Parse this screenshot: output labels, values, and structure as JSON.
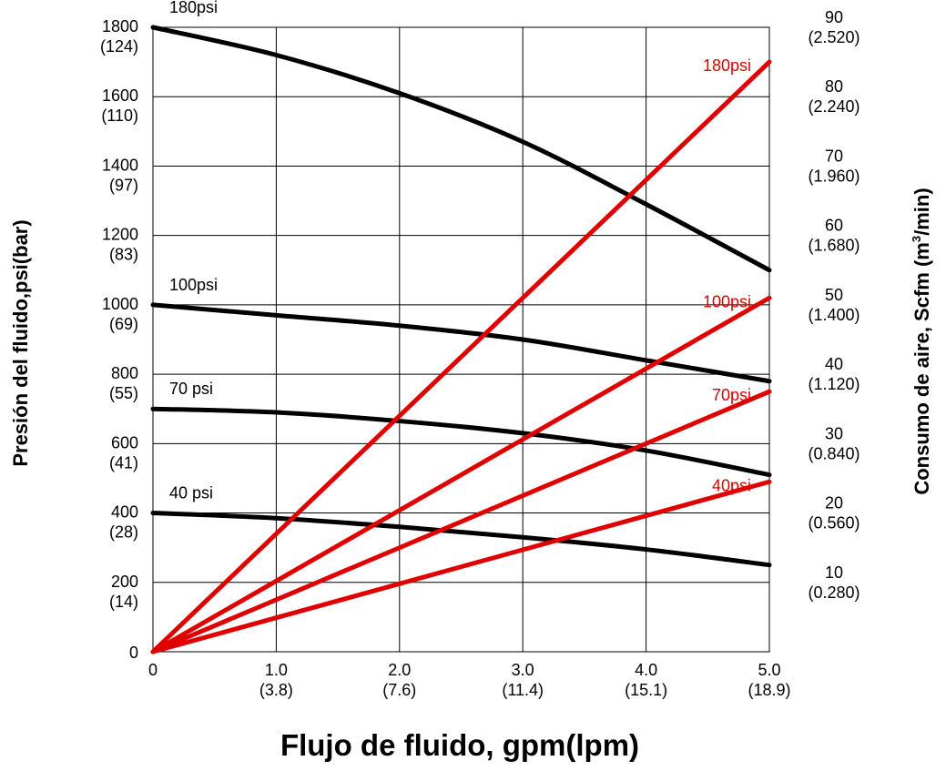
{
  "chart_data": {
    "type": "line",
    "xlabel": "Flujo de fluido,  gpm(lpm)",
    "ylabel_left": "Presión del fluido,psi(bar)",
    "ylabel_right_main": "Consumo de aire,  Scfm (m",
    "ylabel_right_sup": "3",
    "ylabel_right_end": "/min)",
    "xlim": [
      0,
      5
    ],
    "ylim_left": [
      0,
      1800
    ],
    "ylim_right": [
      0,
      90
    ],
    "grid": true,
    "x_ticks": [
      {
        "value": 0,
        "label": "0",
        "sub": ""
      },
      {
        "value": 1,
        "label": "1.0",
        "sub": "(3.8)"
      },
      {
        "value": 2,
        "label": "2.0",
        "sub": "(7.6)"
      },
      {
        "value": 3,
        "label": "3.0",
        "sub": "(11.4)"
      },
      {
        "value": 4,
        "label": "4.0",
        "sub": "(15.1)"
      },
      {
        "value": 5,
        "label": "5.0",
        "sub": "(18.9)"
      }
    ],
    "y_left_ticks": [
      {
        "value": 0,
        "label": "0",
        "sub": ""
      },
      {
        "value": 200,
        "label": "200",
        "sub": "(14)"
      },
      {
        "value": 400,
        "label": "400",
        "sub": "(28)"
      },
      {
        "value": 600,
        "label": "600",
        "sub": "(41)"
      },
      {
        "value": 800,
        "label": "800",
        "sub": "(55)"
      },
      {
        "value": 1000,
        "label": "1000",
        "sub": "(69)"
      },
      {
        "value": 1200,
        "label": "1200",
        "sub": "(83)"
      },
      {
        "value": 1400,
        "label": "1400",
        "sub": "(97)"
      },
      {
        "value": 1600,
        "label": "1600",
        "sub": "(110)"
      },
      {
        "value": 1800,
        "label": "1800",
        "sub": "(124)"
      }
    ],
    "y_right_ticks": [
      {
        "value": 10,
        "label": "10",
        "sub": "(0.280)"
      },
      {
        "value": 20,
        "label": "20",
        "sub": "(0.560)"
      },
      {
        "value": 30,
        "label": "30",
        "sub": "(0.840)"
      },
      {
        "value": 40,
        "label": "40",
        "sub": "(1.120)"
      },
      {
        "value": 50,
        "label": "50",
        "sub": "(1.400)"
      },
      {
        "value": 60,
        "label": "60",
        "sub": "(1.680)"
      },
      {
        "value": 70,
        "label": "70",
        "sub": "(1.960)"
      },
      {
        "value": 80,
        "label": "80",
        "sub": "(2.240)"
      },
      {
        "value": 90,
        "label": "90",
        "sub": "(2.520)"
      }
    ],
    "series": [
      {
        "name": "180psi",
        "axis": "left",
        "color": "#000000",
        "x": [
          0,
          1,
          2,
          3,
          4,
          5
        ],
        "y": [
          1800,
          1720,
          1610,
          1470,
          1290,
          1100
        ]
      },
      {
        "name": "100psi",
        "axis": "left",
        "color": "#000000",
        "x": [
          0,
          1,
          2,
          3,
          4,
          5
        ],
        "y": [
          1000,
          970,
          940,
          900,
          840,
          780
        ]
      },
      {
        "name": "70 psi",
        "axis": "left",
        "color": "#000000",
        "x": [
          0,
          1,
          2,
          3,
          4,
          5
        ],
        "y": [
          700,
          690,
          665,
          630,
          580,
          510
        ]
      },
      {
        "name": "40 psi",
        "axis": "left",
        "color": "#000000",
        "x": [
          0,
          1,
          2,
          3,
          4,
          5
        ],
        "y": [
          400,
          385,
          360,
          330,
          295,
          250
        ]
      },
      {
        "name": "180psi",
        "axis": "right",
        "color": "#e00000",
        "x": [
          0,
          5
        ],
        "y": [
          0,
          85
        ]
      },
      {
        "name": "100psi",
        "axis": "right",
        "color": "#e00000",
        "x": [
          0,
          5
        ],
        "y": [
          0,
          51
        ]
      },
      {
        "name": "70psi",
        "axis": "right",
        "color": "#e00000",
        "x": [
          0,
          5
        ],
        "y": [
          0,
          37.5
        ]
      },
      {
        "name": "40psi",
        "axis": "right",
        "color": "#e00000",
        "x": [
          0,
          5
        ],
        "y": [
          0,
          24.5
        ]
      }
    ]
  }
}
